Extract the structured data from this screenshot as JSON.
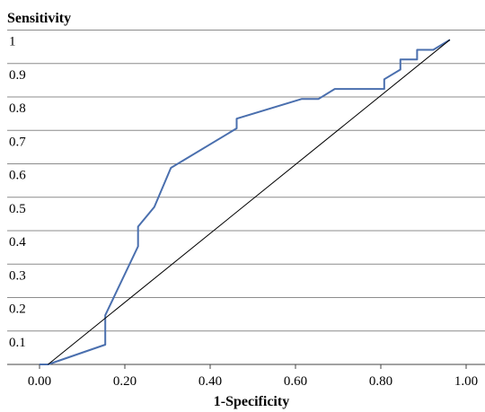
{
  "chart_data": {
    "type": "line",
    "ylabel": "Sensitivity",
    "xlabel": "1-Specificity",
    "xlim": [
      0,
      1
    ],
    "ylim": [
      0,
      1
    ],
    "grid": "horizontal",
    "x_ticks": [
      "0.00",
      "0.20",
      "0.40",
      "0.60",
      "0.80",
      "1.00"
    ],
    "y_ticks": [
      "0.1",
      "0.2",
      "0.3",
      "0.4",
      "0.5",
      "0.6",
      "0.7",
      "0.8",
      "0.9",
      "1"
    ],
    "series": [
      {
        "color": "#4a6fae",
        "x": [
          0.0,
          0.02,
          0.154,
          0.154,
          0.231,
          0.231,
          0.269,
          0.308,
          0.462,
          0.462,
          0.615,
          0.654,
          0.692,
          0.808,
          0.808,
          0.846,
          0.846,
          0.885,
          0.885,
          0.923,
          0.962
        ],
        "y": [
          0.0,
          0.0,
          0.059,
          0.147,
          0.353,
          0.412,
          0.471,
          0.588,
          0.706,
          0.735,
          0.794,
          0.794,
          0.824,
          0.824,
          0.853,
          0.882,
          0.912,
          0.912,
          0.941,
          0.941,
          0.971
        ]
      },
      {
        "color": "#000000",
        "x": [
          0.02,
          0.962
        ],
        "y": [
          0.0,
          0.971
        ]
      }
    ]
  }
}
